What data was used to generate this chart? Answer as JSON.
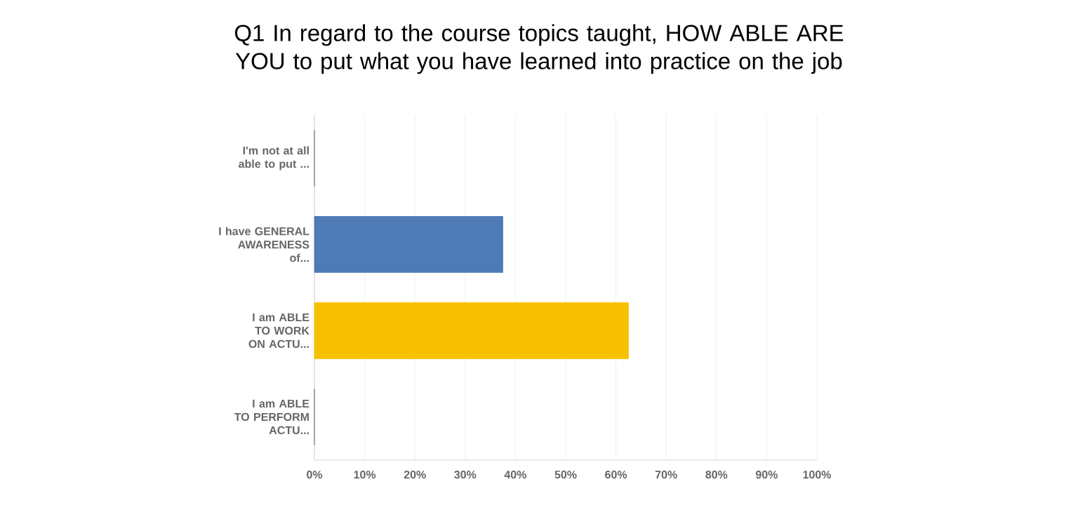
{
  "chart_data": {
    "type": "bar",
    "orientation": "horizontal",
    "title": "Q1 In regard to the course topics taught, HOW ABLE ARE YOU to put what you have learned into practice on the job",
    "categories": [
      "I'm not at all able to put ...",
      "I have GENERAL AWARENESS of...",
      "I am ABLE TO WORK ON ACTU...",
      "I am ABLE TO PERFORM ACTU..."
    ],
    "values": [
      0,
      37.5,
      62.5,
      0
    ],
    "colors": [
      null,
      "#4e7ab5",
      "#f7c100",
      null
    ],
    "xlim": [
      0,
      100
    ],
    "xticks": [
      {
        "value": 0,
        "label": "0%"
      },
      {
        "value": 10,
        "label": "10%"
      },
      {
        "value": 20,
        "label": "20%"
      },
      {
        "value": 30,
        "label": "30%"
      },
      {
        "value": 40,
        "label": "40%"
      },
      {
        "value": 50,
        "label": "50%"
      },
      {
        "value": 60,
        "label": "60%"
      },
      {
        "value": 70,
        "label": "70%"
      },
      {
        "value": 80,
        "label": "80%"
      },
      {
        "value": 90,
        "label": "90%"
      },
      {
        "value": 100,
        "label": "100%"
      }
    ],
    "grid": "x"
  }
}
